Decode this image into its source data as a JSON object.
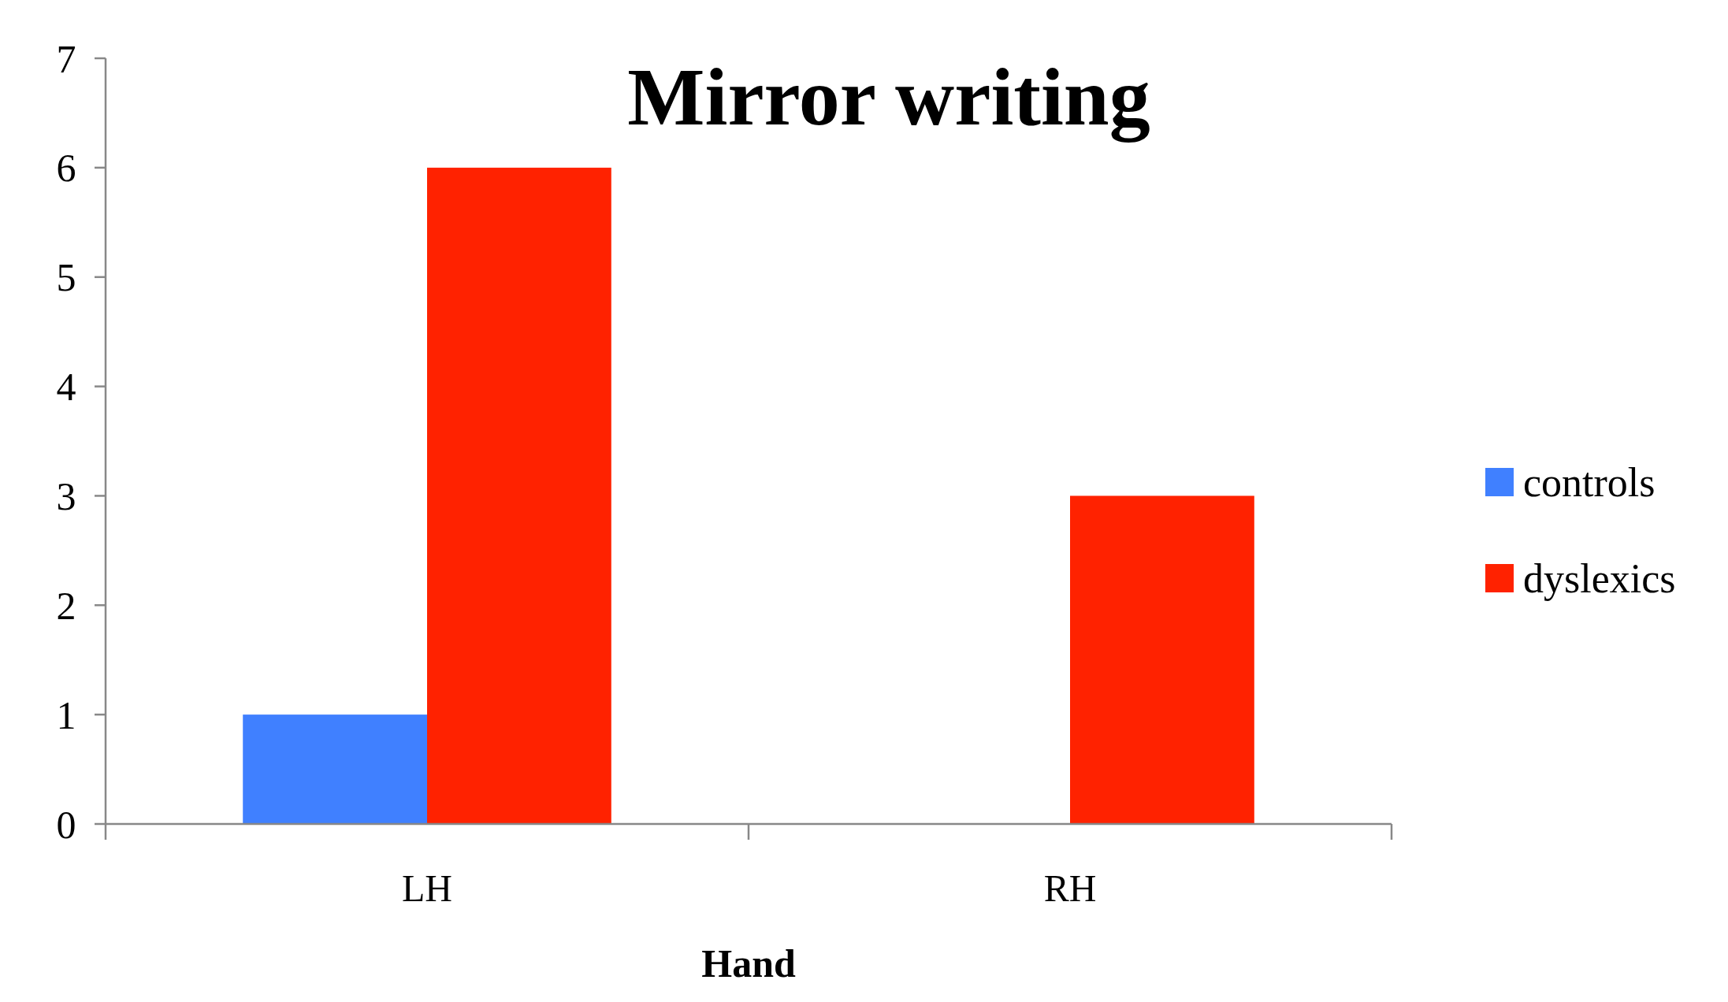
{
  "chart_data": {
    "type": "bar",
    "title": "Mirror writing",
    "xlabel": "Hand",
    "categories": [
      "LH",
      "RH"
    ],
    "series": [
      {
        "name": "controls",
        "color": "#4080ff",
        "values": [
          1,
          0
        ]
      },
      {
        "name": "dyslexics",
        "color": "#ff2200",
        "values": [
          6,
          3
        ]
      }
    ],
    "ylim": [
      0,
      7
    ],
    "yticks": [
      0,
      1,
      2,
      3,
      4,
      5,
      6,
      7
    ],
    "grid": false,
    "legend": "right"
  }
}
